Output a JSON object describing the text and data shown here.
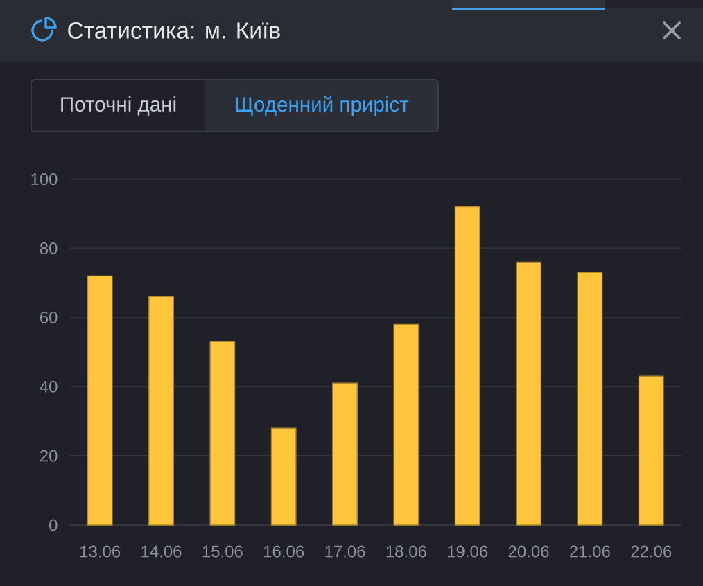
{
  "chart_data": {
    "type": "bar",
    "title": "Статистика: м. Київ",
    "annotations": [
      "Поточні дані",
      "Щоденний приріст"
    ],
    "categories": [
      "13.06",
      "14.06",
      "15.06",
      "16.06",
      "17.06",
      "18.06",
      "19.06",
      "20.06",
      "21.06",
      "22.06"
    ],
    "values": [
      72,
      66,
      53,
      28,
      41,
      58,
      92,
      76,
      73,
      43
    ],
    "color": "#ffc53d",
    "ylim": [
      0,
      100
    ],
    "yticks": [
      0,
      20,
      40,
      60,
      80,
      100
    ],
    "grid": "y"
  }
}
